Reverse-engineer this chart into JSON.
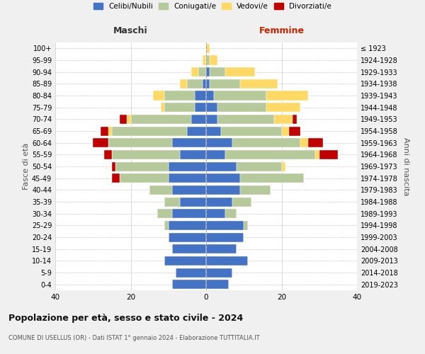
{
  "age_groups": [
    "0-4",
    "5-9",
    "10-14",
    "15-19",
    "20-24",
    "25-29",
    "30-34",
    "35-39",
    "40-44",
    "45-49",
    "50-54",
    "55-59",
    "60-64",
    "65-69",
    "70-74",
    "75-79",
    "80-84",
    "85-89",
    "90-94",
    "95-99",
    "100+"
  ],
  "birth_years": [
    "2019-2023",
    "2014-2018",
    "2009-2013",
    "2004-2008",
    "1999-2003",
    "1994-1998",
    "1989-1993",
    "1984-1988",
    "1979-1983",
    "1974-1978",
    "1969-1973",
    "1964-1968",
    "1959-1963",
    "1954-1958",
    "1949-1953",
    "1944-1948",
    "1939-1943",
    "1934-1938",
    "1929-1933",
    "1924-1928",
    "≤ 1923"
  ],
  "colors": {
    "celibi": "#4472c4",
    "coniugati": "#b5c99a",
    "vedovi": "#ffd966",
    "divorziati": "#c00000"
  },
  "maschi": {
    "celibi": [
      9,
      8,
      11,
      9,
      10,
      10,
      9,
      7,
      9,
      10,
      10,
      7,
      9,
      5,
      4,
      3,
      3,
      1,
      0,
      0,
      0
    ],
    "coniugati": [
      0,
      0,
      0,
      0,
      0,
      1,
      4,
      4,
      6,
      13,
      14,
      18,
      17,
      20,
      16,
      8,
      8,
      4,
      2,
      0,
      0
    ],
    "vedovi": [
      0,
      0,
      0,
      0,
      0,
      0,
      0,
      0,
      0,
      0,
      0,
      0,
      0,
      1,
      1,
      1,
      3,
      2,
      2,
      1,
      0
    ],
    "divorziati": [
      0,
      0,
      0,
      0,
      0,
      0,
      0,
      0,
      0,
      2,
      1,
      2,
      4,
      2,
      2,
      0,
      0,
      0,
      0,
      0,
      0
    ]
  },
  "femmine": {
    "celibi": [
      6,
      7,
      11,
      8,
      10,
      10,
      5,
      7,
      9,
      9,
      8,
      5,
      7,
      4,
      3,
      3,
      2,
      1,
      1,
      0,
      0
    ],
    "coniugati": [
      0,
      0,
      0,
      0,
      0,
      1,
      3,
      5,
      8,
      17,
      12,
      24,
      18,
      16,
      15,
      13,
      14,
      8,
      4,
      1,
      0
    ],
    "vedovi": [
      0,
      0,
      0,
      0,
      0,
      0,
      0,
      0,
      0,
      0,
      1,
      1,
      2,
      2,
      5,
      9,
      11,
      10,
      8,
      2,
      1
    ],
    "divorziati": [
      0,
      0,
      0,
      0,
      0,
      0,
      0,
      0,
      0,
      0,
      0,
      5,
      4,
      3,
      1,
      0,
      0,
      0,
      0,
      0,
      0
    ]
  },
  "xlim": 40,
  "title": "Popolazione per età, sesso e stato civile - 2024",
  "subtitle": "COMUNE DI USELLUS (OR) - Dati ISTAT 1° gennaio 2024 - Elaborazione TUTTITALIA.IT",
  "ylabel_left": "Fasce di età",
  "ylabel_right": "Anni di nascita",
  "xlabel_left": "Maschi",
  "xlabel_right": "Femmine",
  "legend_labels": [
    "Celibi/Nubili",
    "Coniugati/e",
    "Vedovi/e",
    "Divorziati/e"
  ],
  "background_color": "#f0f0f0",
  "plot_background": "#ffffff",
  "maschi_label_color": "#333333",
  "femmine_label_color": "#cc2200"
}
